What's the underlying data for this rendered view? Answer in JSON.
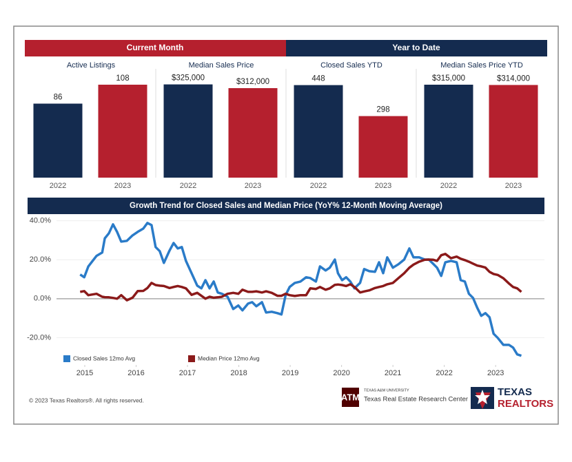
{
  "header": {
    "current_month": "Current Month",
    "year_to_date": "Year to Date"
  },
  "chart_data": [
    {
      "type": "bar",
      "title": "Active Listings",
      "categories": [
        "2022",
        "2023"
      ],
      "values": [
        86,
        108
      ],
      "colors": [
        "#142b4f",
        "#b5202e"
      ],
      "ylim": [
        0,
        120
      ]
    },
    {
      "type": "bar",
      "title": "Median Sales Price",
      "categories": [
        "2022",
        "2023"
      ],
      "values": [
        325000,
        312000
      ],
      "value_labels": [
        "$325,000",
        "$312,000"
      ],
      "colors": [
        "#142b4f",
        "#b5202e"
      ],
      "ylim": [
        0,
        360000
      ]
    },
    {
      "type": "bar",
      "title": "Closed Sales YTD",
      "categories": [
        "2022",
        "2023"
      ],
      "values": [
        448,
        298
      ],
      "colors": [
        "#142b4f",
        "#b5202e"
      ],
      "ylim": [
        0,
        500
      ]
    },
    {
      "type": "bar",
      "title": "Median Sales Price YTD",
      "categories": [
        "2022",
        "2023"
      ],
      "values": [
        315000,
        314000
      ],
      "value_labels": [
        "$315,000",
        "$314,000"
      ],
      "colors": [
        "#142b4f",
        "#b5202e"
      ],
      "ylim": [
        0,
        350000
      ]
    },
    {
      "type": "line",
      "title": "Growth Trend for Closed Sales and Median Price (YoY% 12-Month Moving Average)",
      "x": [
        2014.91,
        2014.99,
        2015.07,
        2015.23,
        2015.34,
        2015.39,
        2015.47,
        2015.55,
        2015.63,
        2015.71,
        2015.82,
        2015.93,
        2016.03,
        2016.14,
        2016.22,
        2016.3,
        2016.38,
        2016.46,
        2016.54,
        2016.65,
        2016.73,
        2016.81,
        2016.89,
        2016.97,
        2017.08,
        2017.19,
        2017.27,
        2017.35,
        2017.43,
        2017.51,
        2017.59,
        2017.67,
        2017.78,
        2017.89,
        2017.99,
        2018.07,
        2018.18,
        2018.26,
        2018.34,
        2018.45,
        2018.53,
        2018.64,
        2018.75,
        2018.83,
        2018.91,
        2018.99,
        2019.09,
        2019.2,
        2019.31,
        2019.39,
        2019.5,
        2019.58,
        2019.69,
        2019.77,
        2019.87,
        2019.93,
        2020.01,
        2020.09,
        2020.17,
        2020.25,
        2020.36,
        2020.44,
        2020.54,
        2020.65,
        2020.73,
        2020.81,
        2020.89,
        2021.0,
        2021.11,
        2021.22,
        2021.32,
        2021.4,
        2021.51,
        2021.62,
        2021.7,
        2021.78,
        2021.86,
        2021.94,
        2022.02,
        2022.13,
        2022.24,
        2022.32,
        2022.4,
        2022.48,
        2022.56,
        2022.64,
        2022.72,
        2022.8,
        2022.88,
        2022.96,
        2023.04,
        2023.15,
        2023.26,
        2023.34,
        2023.42,
        2023.5
      ],
      "series": [
        {
          "name": "Closed Sales 12mo Avg",
          "color": "#2a7bc8",
          "values": [
            12.4,
            11,
            16.6,
            22,
            23.7,
            31,
            33.6,
            38.2,
            34.3,
            29.3,
            29.7,
            32.5,
            34.3,
            36,
            38.9,
            37.8,
            26.5,
            24.4,
            18.4,
            24.7,
            28.6,
            25.8,
            26.5,
            19.4,
            13.1,
            6.7,
            5.3,
            9.5,
            5.3,
            8.8,
            3.2,
            2.5,
            1,
            -5.3,
            -3.5,
            -6,
            -2.5,
            -1.8,
            -3.9,
            -1.8,
            -7.1,
            -6.7,
            -7.4,
            -8.1,
            1.8,
            6,
            8.1,
            8.8,
            11,
            10.6,
            8.8,
            16.6,
            14.5,
            15.9,
            20.1,
            13.1,
            9.5,
            11,
            8.8,
            5.3,
            8.1,
            15.2,
            14.1,
            13.8,
            18.7,
            13.1,
            21.2,
            15.9,
            17.7,
            20.1,
            25.8,
            21.2,
            21.2,
            20.1,
            20.1,
            18,
            15.9,
            11.7,
            18.7,
            19.4,
            18.7,
            9.5,
            8.8,
            2.5,
            0.4,
            -4.6,
            -8.8,
            -7.4,
            -9.5,
            -18,
            -20.1,
            -23.7,
            -23.7,
            -25.1,
            -28.6,
            -29.3
          ]
        },
        {
          "name": "Median Price 12mo Avg",
          "color": "#8b1a1a",
          "values": [
            3.5,
            3.9,
            1.8,
            2.5,
            1,
            0.8,
            0.7,
            0.4,
            0,
            1.8,
            -0.8,
            0.5,
            3.9,
            4,
            5.5,
            8.1,
            7,
            6.7,
            6.5,
            5.5,
            6,
            6.5,
            6,
            5.3,
            2,
            3,
            1.5,
            0,
            1,
            0.5,
            0.7,
            1,
            2.5,
            3,
            2.5,
            4.6,
            3.5,
            3.5,
            3.8,
            3.2,
            3.8,
            3,
            1.5,
            1.5,
            2.5,
            1.8,
            1.4,
            1.8,
            1.8,
            5.3,
            5,
            6,
            4.6,
            5.3,
            7.1,
            7.3,
            7,
            6.5,
            7.4,
            6,
            3.2,
            3.7,
            4.3,
            5.5,
            6,
            6.5,
            7.4,
            8.1,
            10.6,
            13.1,
            15.9,
            17.5,
            19,
            20,
            20.1,
            20,
            19.4,
            22.3,
            23,
            20.8,
            21.6,
            20.5,
            19.8,
            19,
            18,
            17,
            16.6,
            16,
            13.8,
            12.7,
            12.2,
            10.5,
            7.8,
            6,
            5.3,
            3.5
          ]
        }
      ],
      "xlim": [
        2014.45,
        2023.95
      ],
      "xticks": [
        2015,
        2016,
        2017,
        2018,
        2019,
        2020,
        2021,
        2022,
        2023
      ],
      "ylim": [
        -34,
        42
      ],
      "yticks": [
        {
          "value": 40,
          "label": "40.0%"
        },
        {
          "value": 20,
          "label": "20.0%"
        },
        {
          "value": 0,
          "label": "0.0%"
        },
        {
          "value": -20,
          "label": "-20.0%"
        }
      ],
      "grid": true,
      "legend": "lower left"
    }
  ],
  "footer": {
    "copyright": "© 2023 Texas Realtors®. All rights reserved.",
    "tamu_small": "TEXAS A&M UNIVERSITY",
    "tamu": "Texas Real Estate Research Center",
    "realtors_1": "TEXAS",
    "realtors_2": "REALTORS"
  }
}
